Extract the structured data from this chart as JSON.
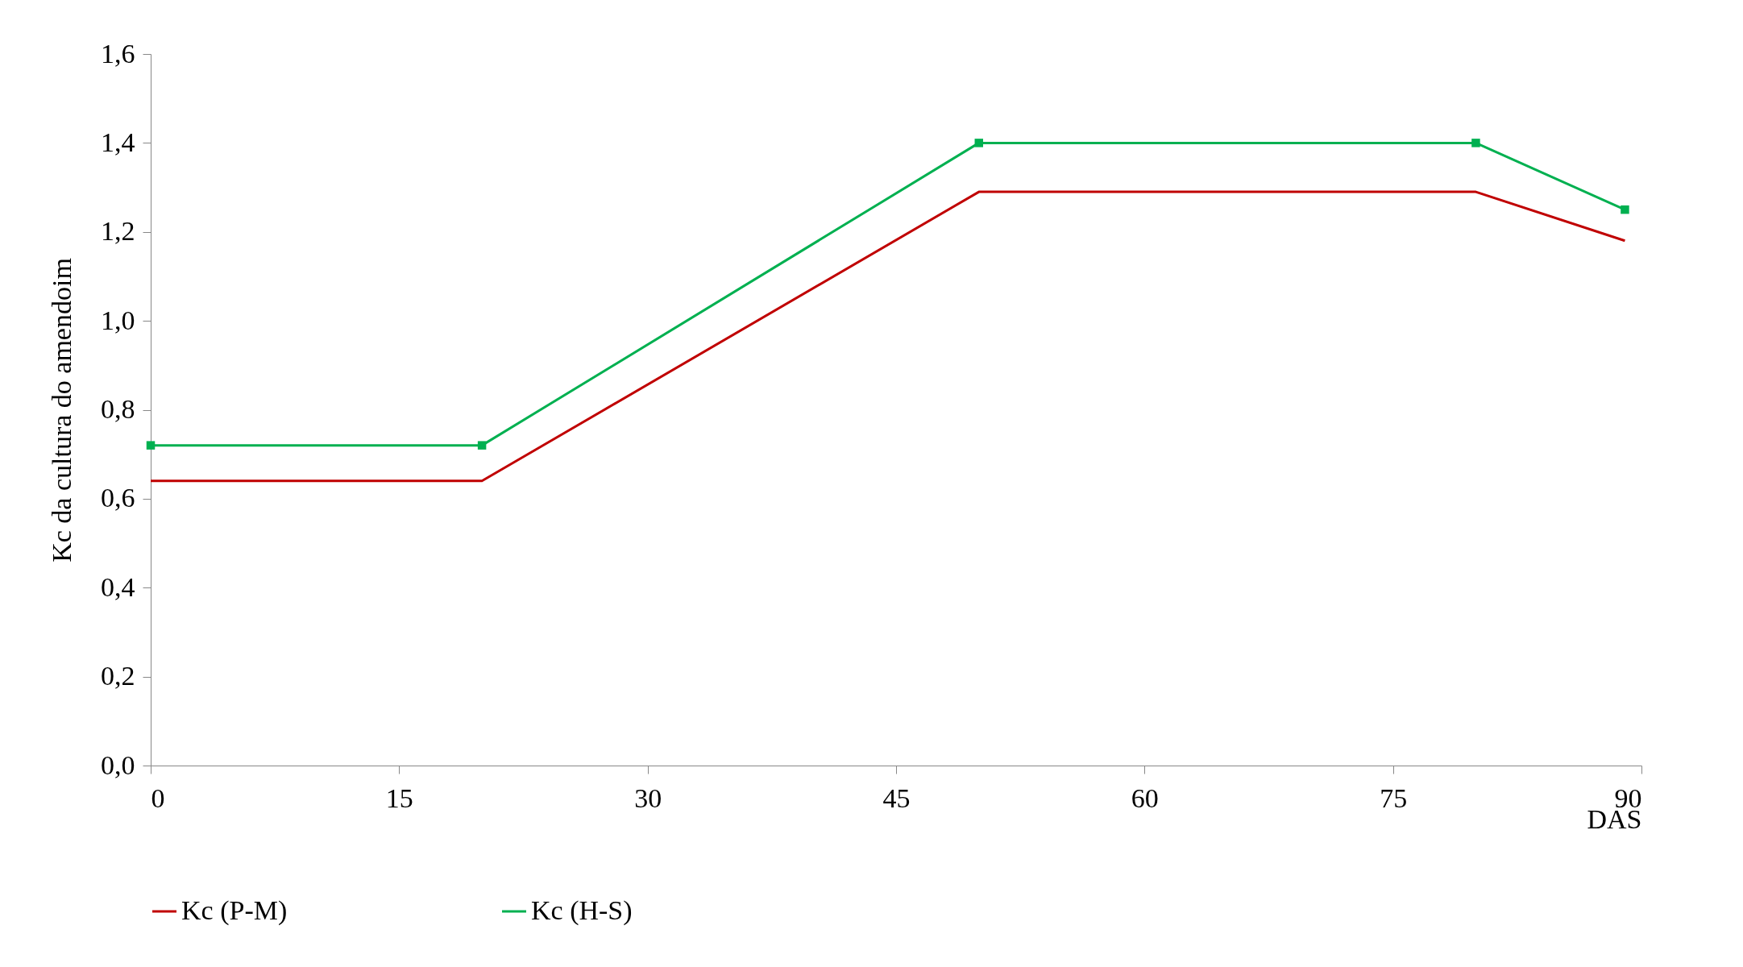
{
  "chart_data": {
    "type": "line",
    "xlabel": "DAS",
    "ylabel": "Kc da cultura do amendoim",
    "xlim": [
      0,
      90
    ],
    "xticks": [
      0,
      15,
      30,
      45,
      60,
      75,
      90
    ],
    "ylim": [
      0,
      1.6
    ],
    "yticks": [
      {
        "value": 0,
        "label": "0,0"
      },
      {
        "value": 0.2,
        "label": "0,2"
      },
      {
        "value": 0.4,
        "label": "0,4"
      },
      {
        "value": 0.6,
        "label": "0,6"
      },
      {
        "value": 0.8,
        "label": "0,8"
      },
      {
        "value": 1,
        "label": "1,0"
      },
      {
        "value": 1.2,
        "label": "1,2"
      },
      {
        "value": 1.4,
        "label": "1,4"
      },
      {
        "value": 1.6,
        "label": "1,6"
      }
    ],
    "grid": false,
    "legend": "bottom",
    "line_style": "solid",
    "series": [
      {
        "name": "Kc (P-M)",
        "color": "#c00000",
        "marker": "none",
        "x": [
          0,
          20,
          50,
          80,
          89
        ],
        "values": [
          0.64,
          0.64,
          1.29,
          1.29,
          1.18
        ]
      },
      {
        "name": "Kc (H-S)",
        "color": "#00b050",
        "marker": "square",
        "x": [
          0,
          20,
          50,
          80,
          89
        ],
        "values": [
          0.72,
          0.72,
          1.4,
          1.4,
          1.25
        ]
      }
    ]
  }
}
